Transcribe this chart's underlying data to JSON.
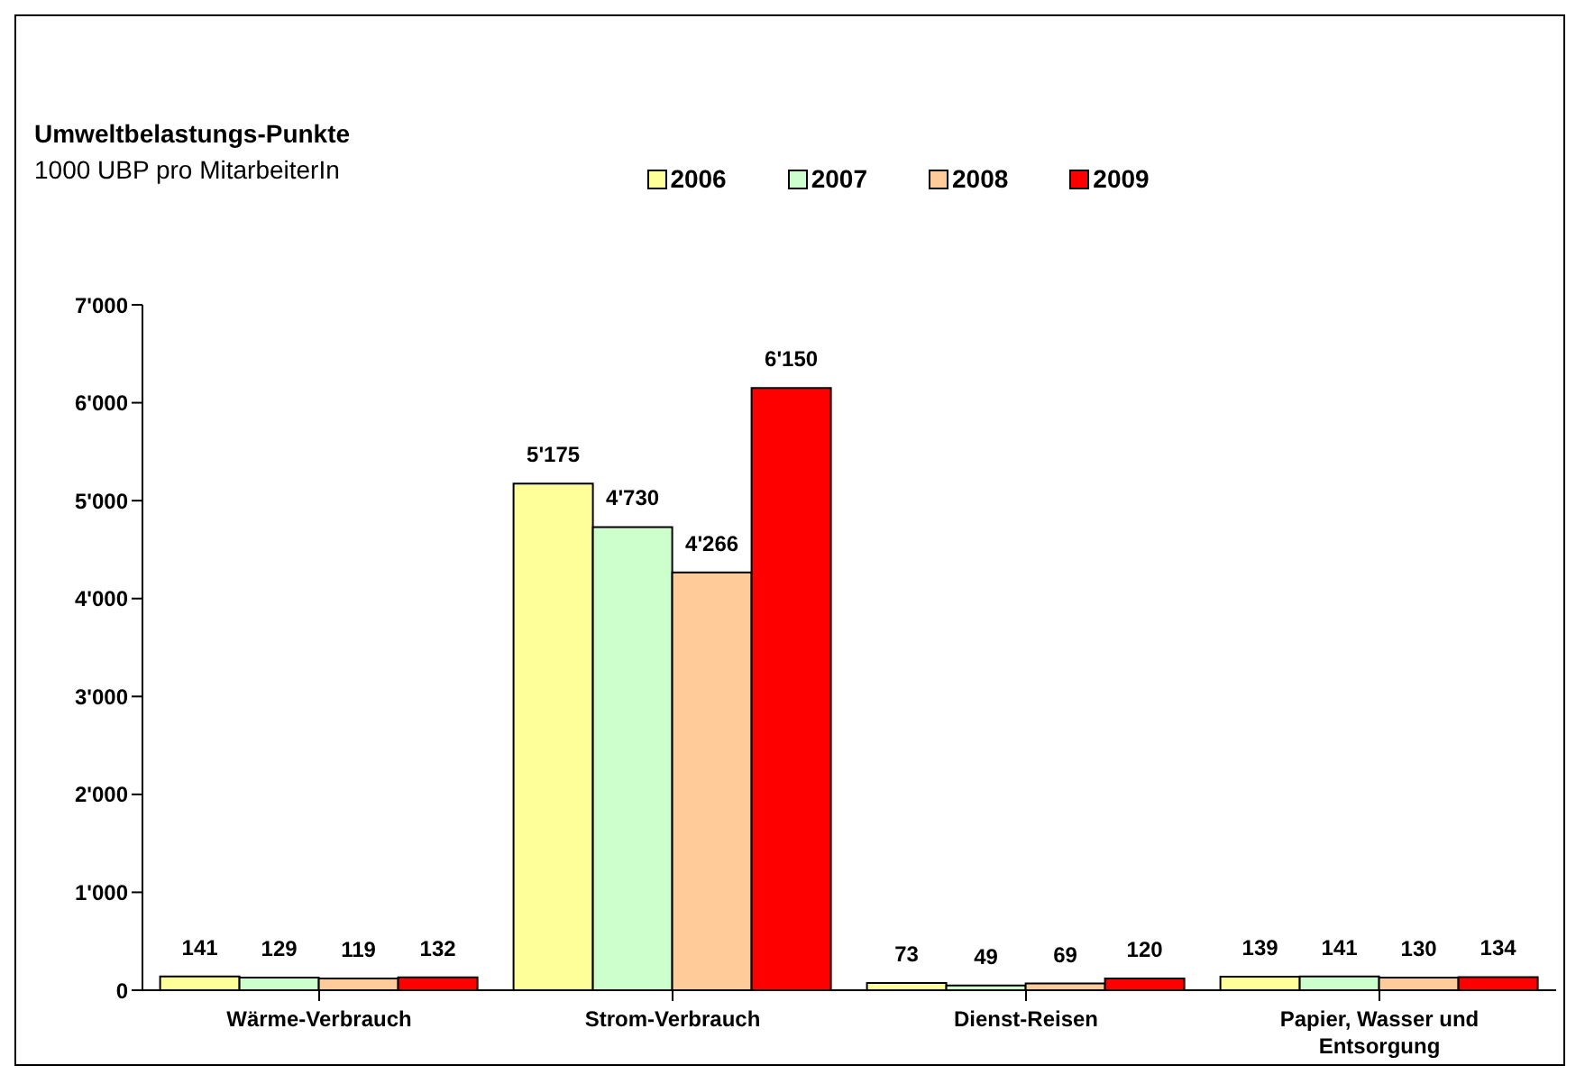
{
  "chart_data": {
    "type": "bar",
    "title": "Umweltbelastungs-Punkte",
    "subtitle": "1000 UBP pro MitarbeiterIn",
    "categories": [
      "Wärme-Verbrauch",
      "Strom-Verbrauch",
      "Dienst-Reisen",
      "Papier, Wasser und Entsorgung"
    ],
    "series": [
      {
        "name": "2006",
        "color": "#ffff99",
        "values": [
          141,
          5175,
          73,
          139
        ],
        "value_labels": [
          "141",
          "5'175",
          "73",
          "139"
        ]
      },
      {
        "name": "2007",
        "color": "#ccffcc",
        "values": [
          129,
          4730,
          49,
          141
        ],
        "value_labels": [
          "129",
          "4'730",
          "49",
          "141"
        ]
      },
      {
        "name": "2008",
        "color": "#ffcc99",
        "values": [
          119,
          4266,
          69,
          130
        ],
        "value_labels": [
          "119",
          "4'266",
          "69",
          "130"
        ]
      },
      {
        "name": "2009",
        "color": "#ff0000",
        "values": [
          132,
          6150,
          120,
          134
        ],
        "value_labels": [
          "132",
          "6'150",
          "120",
          "134"
        ]
      }
    ],
    "ylim": [
      0,
      7000
    ],
    "yticks": [
      {
        "value": 0,
        "label": "0"
      },
      {
        "value": 1000,
        "label": "1'000"
      },
      {
        "value": 2000,
        "label": "2'000"
      },
      {
        "value": 3000,
        "label": "3'000"
      },
      {
        "value": 4000,
        "label": "4'000"
      },
      {
        "value": 5000,
        "label": "5'000"
      },
      {
        "value": 6000,
        "label": "6'000"
      },
      {
        "value": 7000,
        "label": "7'000"
      }
    ],
    "grid": false,
    "legend": "top"
  }
}
